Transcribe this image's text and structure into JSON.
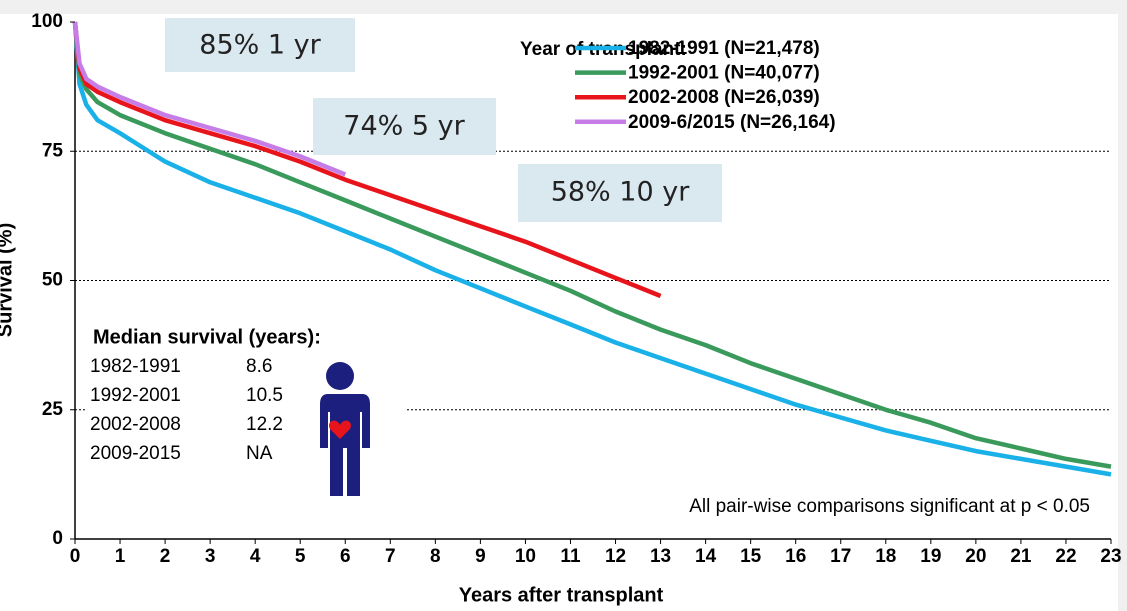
{
  "chart_data": {
    "type": "line",
    "xlabel": "Years after transplant",
    "ylabel": "Survival (%)",
    "legend_title": "Year of transplant:",
    "legend_position": "upper right",
    "grid": true,
    "x": [
      0,
      0.1,
      0.25,
      0.5,
      1,
      2,
      3,
      4,
      5,
      6,
      7,
      8,
      9,
      10,
      11,
      12,
      13,
      14,
      15,
      16,
      17,
      18,
      19,
      20,
      21,
      22,
      23
    ],
    "xlim": [
      0,
      23
    ],
    "xticks": [
      0,
      1,
      2,
      3,
      4,
      5,
      6,
      7,
      8,
      9,
      10,
      11,
      12,
      13,
      14,
      15,
      16,
      17,
      18,
      19,
      20,
      21,
      22,
      23
    ],
    "ylim": [
      0,
      100
    ],
    "yticks": [
      0,
      25,
      50,
      75,
      100
    ],
    "series": [
      {
        "name": "1982-1991 (N=21,478)",
        "color": "#1ab0e8",
        "values": [
          100,
          88,
          84,
          81,
          78.5,
          73,
          69,
          66,
          63,
          59.5,
          56,
          52,
          48.5,
          45,
          41.5,
          38,
          35,
          32,
          29,
          26,
          23.5,
          21,
          19,
          17,
          15.5,
          14,
          12.5
        ]
      },
      {
        "name": "1992-2001 (N=40,077)",
        "color": "#3a9a5c",
        "values": [
          100,
          90,
          87,
          84.5,
          82,
          78.5,
          75.5,
          72.5,
          69,
          65.5,
          62,
          58.5,
          55,
          51.5,
          48,
          44,
          40.5,
          37.5,
          34,
          31,
          28,
          25,
          22.5,
          19.5,
          17.5,
          15.5,
          14
        ]
      },
      {
        "name": "2002-2008 (N=26,039)",
        "color": "#e8141b",
        "values": [
          100,
          91,
          88,
          86.5,
          84.5,
          81,
          78.5,
          76,
          73,
          69.5,
          66.5,
          63.5,
          60.5,
          57.5,
          54,
          50.5,
          47,
          null,
          null,
          null,
          null,
          null,
          null,
          null,
          null,
          null,
          null
        ]
      },
      {
        "name": "2009-6/2015 (N=26,164)",
        "color": "#c77de8",
        "values": [
          100,
          92,
          89,
          87.5,
          85.5,
          82,
          79.5,
          77,
          74,
          70.5,
          null,
          null,
          null,
          null,
          null,
          null,
          null,
          null,
          null,
          null,
          null,
          null,
          null,
          null,
          null,
          null,
          null
        ]
      }
    ],
    "annotations": [
      "85% 1 yr",
      "74% 5 yr",
      "58% 10 yr"
    ],
    "median_table": {
      "title": "Median survival (years):",
      "rows": [
        [
          "1982-1991",
          "8.6"
        ],
        [
          "1992-2001",
          "10.5"
        ],
        [
          "2002-2008",
          "12.2"
        ],
        [
          "2009-2015",
          "NA"
        ]
      ]
    },
    "note": "All pair-wise comparisons significant at p < 0.05"
  }
}
